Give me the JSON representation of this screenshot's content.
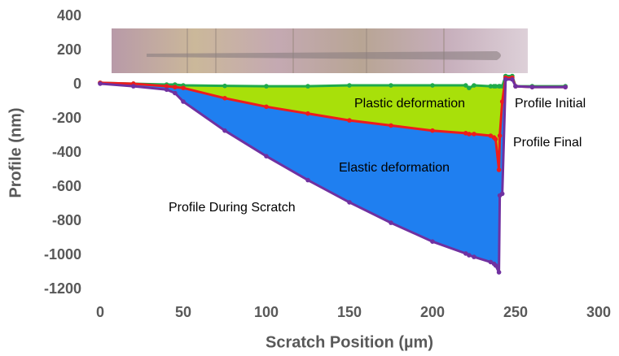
{
  "chart_data": {
    "type": "line",
    "x_label": "Scratch Position (µm)",
    "y_label": "Profile (nm)",
    "xlim": [
      0,
      300
    ],
    "xticks": [
      0,
      50,
      100,
      150,
      200,
      250,
      300
    ],
    "ylim": [
      -1200,
      400
    ],
    "yticks": [
      -1200,
      -1000,
      -800,
      -600,
      -400,
      -200,
      0,
      200,
      400
    ],
    "grid": false,
    "x": [
      0,
      20,
      40,
      45,
      50,
      75,
      100,
      125,
      150,
      175,
      200,
      220,
      222,
      225,
      235,
      237,
      238,
      240,
      240.5,
      242,
      244,
      248,
      250,
      260,
      280
    ],
    "series": [
      {
        "name": "Profile Initial",
        "color": "#1faa4a",
        "values": [
          10,
          5,
          0,
          0,
          -5,
          -8,
          -10,
          -10,
          -5,
          -5,
          -5,
          -5,
          -20,
          -5,
          -10,
          -10,
          -10,
          -10,
          -10,
          -10,
          50,
          50,
          -10,
          -10,
          -10
        ]
      },
      {
        "name": "Profile Final",
        "color": "#ee1c1c",
        "fill_color": "#a8e00a",
        "values": [
          10,
          5,
          -10,
          -15,
          -20,
          -80,
          -130,
          -170,
          -210,
          -240,
          -270,
          -285,
          -290,
          -290,
          -300,
          -310,
          -320,
          -500,
          -300,
          -100,
          40,
          40,
          -10,
          -15,
          -15
        ]
      },
      {
        "name": "Profile During Scratch",
        "color": "#7030a0",
        "fill_color": "#1f7ff0",
        "values": [
          5,
          -10,
          -30,
          -50,
          -100,
          -270,
          -420,
          -560,
          -690,
          -810,
          -920,
          -990,
          -1000,
          -1010,
          -1040,
          -1050,
          -1060,
          -1100,
          -650,
          -640,
          30,
          30,
          -10,
          -15,
          -15
        ]
      }
    ],
    "annotations": [
      "Plastic deformation",
      "Elastic deformation"
    ]
  }
}
